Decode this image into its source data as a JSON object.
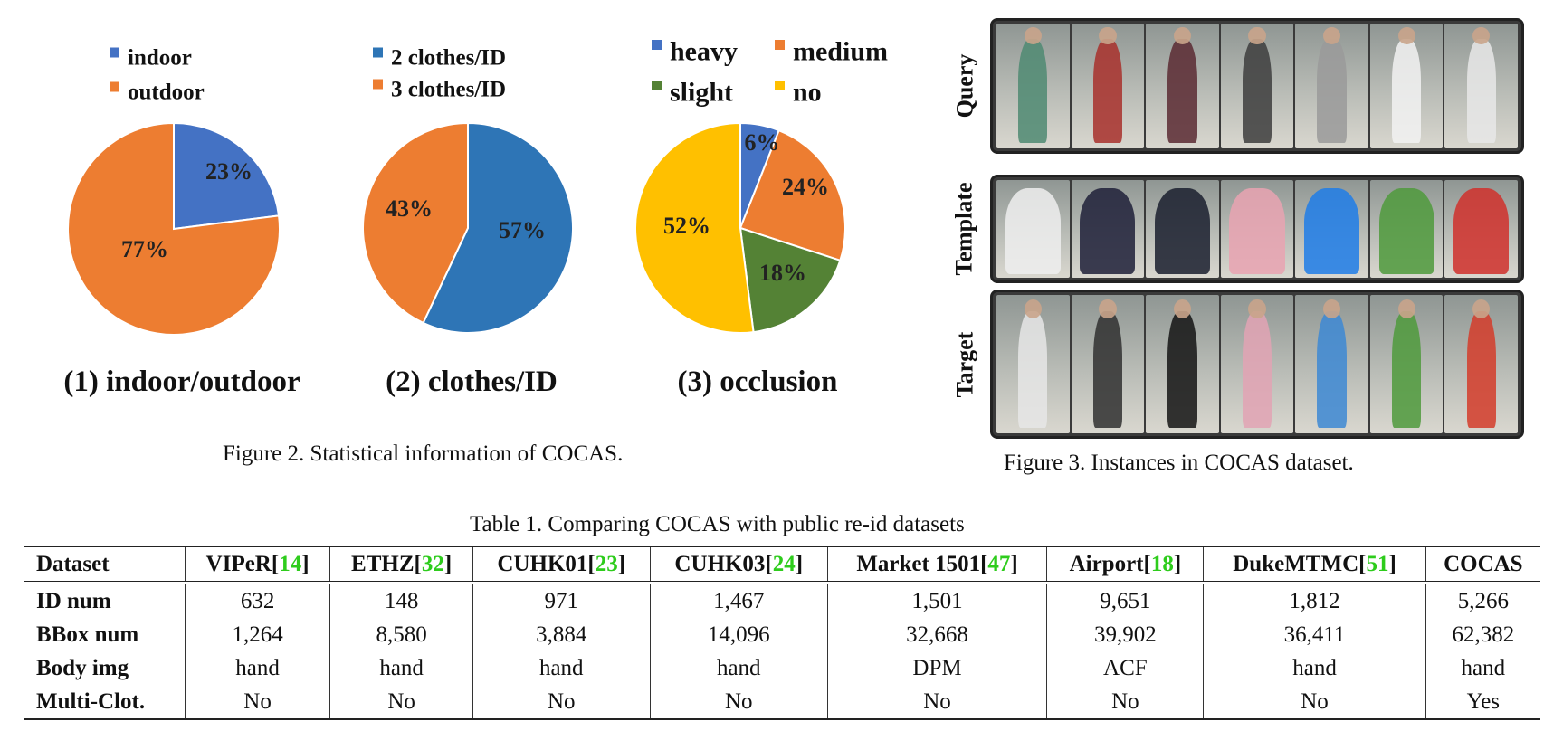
{
  "figure2": {
    "caption": "Figure 2. Statistical information of COCAS.",
    "chart_data": [
      {
        "type": "pie",
        "title": "(1) indoor/outdoor",
        "slices": [
          {
            "label": "indoor",
            "value": 23,
            "display": "23%",
            "color": "#4472c4"
          },
          {
            "label": "outdoor",
            "value": 77,
            "display": "77%",
            "color": "#ed7d31"
          }
        ]
      },
      {
        "type": "pie",
        "title": "(2) clothes/ID",
        "slices": [
          {
            "label": "2 clothes/ID",
            "value": 57,
            "display": "57%",
            "color": "#2e75b6"
          },
          {
            "label": "3 clothes/ID",
            "value": 43,
            "display": "43%",
            "color": "#ed7d31"
          }
        ]
      },
      {
        "type": "pie",
        "title": "(3) occlusion",
        "slices": [
          {
            "label": "heavy",
            "value": 6,
            "display": "6%",
            "color": "#4472c4"
          },
          {
            "label": "medium",
            "value": 24,
            "display": "24%",
            "color": "#ed7d31"
          },
          {
            "label": "slight",
            "value": 18,
            "display": "18%",
            "color": "#548235"
          },
          {
            "label": "no",
            "value": 52,
            "display": "52%",
            "color": "#ffc000"
          }
        ]
      }
    ]
  },
  "figure3": {
    "caption": "Figure 3. Instances in COCAS dataset.",
    "rows": [
      {
        "label": "Query",
        "colors": [
          "#4f8a72",
          "#a8302c",
          "#5a2a33",
          "#3d3d3d",
          "#9a9a9a",
          "#f2f2f2",
          "#e8e8e8"
        ]
      },
      {
        "label": "Template",
        "colors": [
          "#eeeeee",
          "#1e2038",
          "#1a1f2e",
          "#e9a3b1",
          "#1f7de8",
          "#4f9a3c",
          "#d0302b"
        ]
      },
      {
        "label": "Target",
        "colors": [
          "#e6e6e6",
          "#303030",
          "#141414",
          "#e2a3b4",
          "#3d88d4",
          "#4f9a3c",
          "#d43c2a"
        ]
      }
    ]
  },
  "table": {
    "caption": "Table 1. Comparing COCAS with public re-id datasets",
    "header": [
      {
        "name": "Dataset",
        "ref": ""
      },
      {
        "name": "VIPeR[",
        "ref": "14"
      },
      {
        "name": "ETHZ[",
        "ref": "32"
      },
      {
        "name": "CUHK01[",
        "ref": "23"
      },
      {
        "name": "CUHK03[",
        "ref": "24"
      },
      {
        "name": "Market 1501[",
        "ref": "47"
      },
      {
        "name": "Airport[",
        "ref": "18"
      },
      {
        "name": "DukeMTMC[",
        "ref": "51"
      },
      {
        "name": "COCAS",
        "ref": ""
      }
    ],
    "rows": [
      {
        "label": "ID num",
        "cells": [
          "632",
          "148",
          "971",
          "1,467",
          "1,501",
          "9,651",
          "1,812",
          "5,266"
        ]
      },
      {
        "label": "BBox num",
        "cells": [
          "1,264",
          "8,580",
          "3,884",
          "14,096",
          "32,668",
          "39,902",
          "36,411",
          "62,382"
        ]
      },
      {
        "label": "Body img",
        "cells": [
          "hand",
          "hand",
          "hand",
          "hand",
          "DPM",
          "ACF",
          "hand",
          "hand"
        ]
      },
      {
        "label": "Multi-Clot.",
        "cells": [
          "No",
          "No",
          "No",
          "No",
          "No",
          "No",
          "No",
          "Yes"
        ]
      }
    ]
  }
}
